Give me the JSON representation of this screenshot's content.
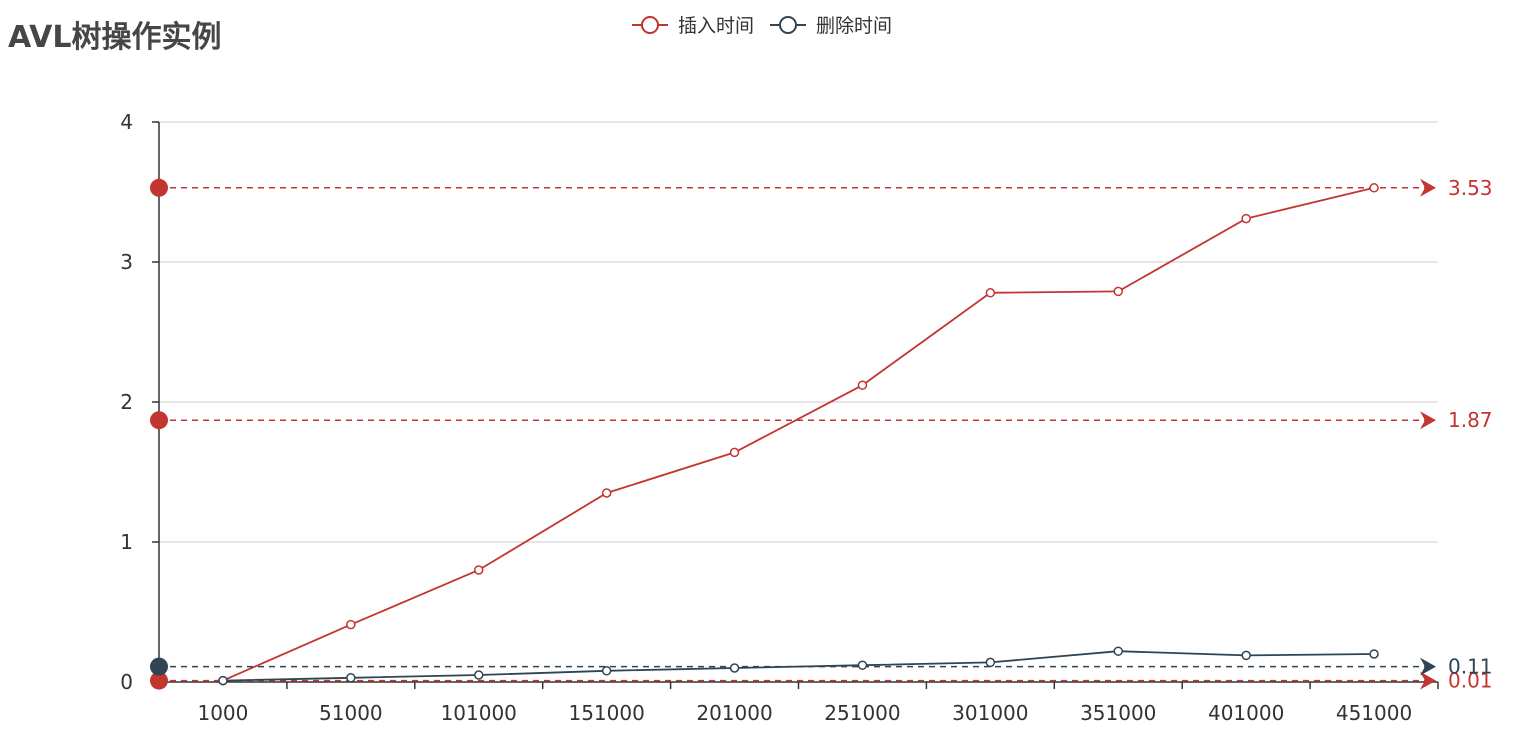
{
  "chart_data": {
    "type": "line",
    "title": "AVL树操作实例",
    "categories": [
      "1000",
      "51000",
      "101000",
      "151000",
      "201000",
      "251000",
      "301000",
      "351000",
      "401000",
      "451000"
    ],
    "series": [
      {
        "name": "插入时间",
        "color": "#c23531",
        "values": [
          0.01,
          0.41,
          0.8,
          1.35,
          1.64,
          2.12,
          2.78,
          2.79,
          3.31,
          3.53
        ],
        "markLines": [
          {
            "value": 3.53,
            "label": "3.53"
          },
          {
            "value": 1.87,
            "label": "1.87"
          },
          {
            "value": 0.01,
            "label": "0.01"
          }
        ]
      },
      {
        "name": "删除时间",
        "color": "#2f4554",
        "values": [
          0.01,
          0.03,
          0.05,
          0.08,
          0.1,
          0.12,
          0.14,
          0.22,
          0.19,
          0.2
        ],
        "markLines": [
          {
            "value": 0.11,
            "label": "0.11"
          }
        ]
      }
    ],
    "xlabel": "",
    "ylabel": "",
    "ylim": [
      0,
      4
    ],
    "yticks": [
      "0",
      "1",
      "2",
      "3",
      "4"
    ],
    "grid": true,
    "legend": "top-center"
  }
}
